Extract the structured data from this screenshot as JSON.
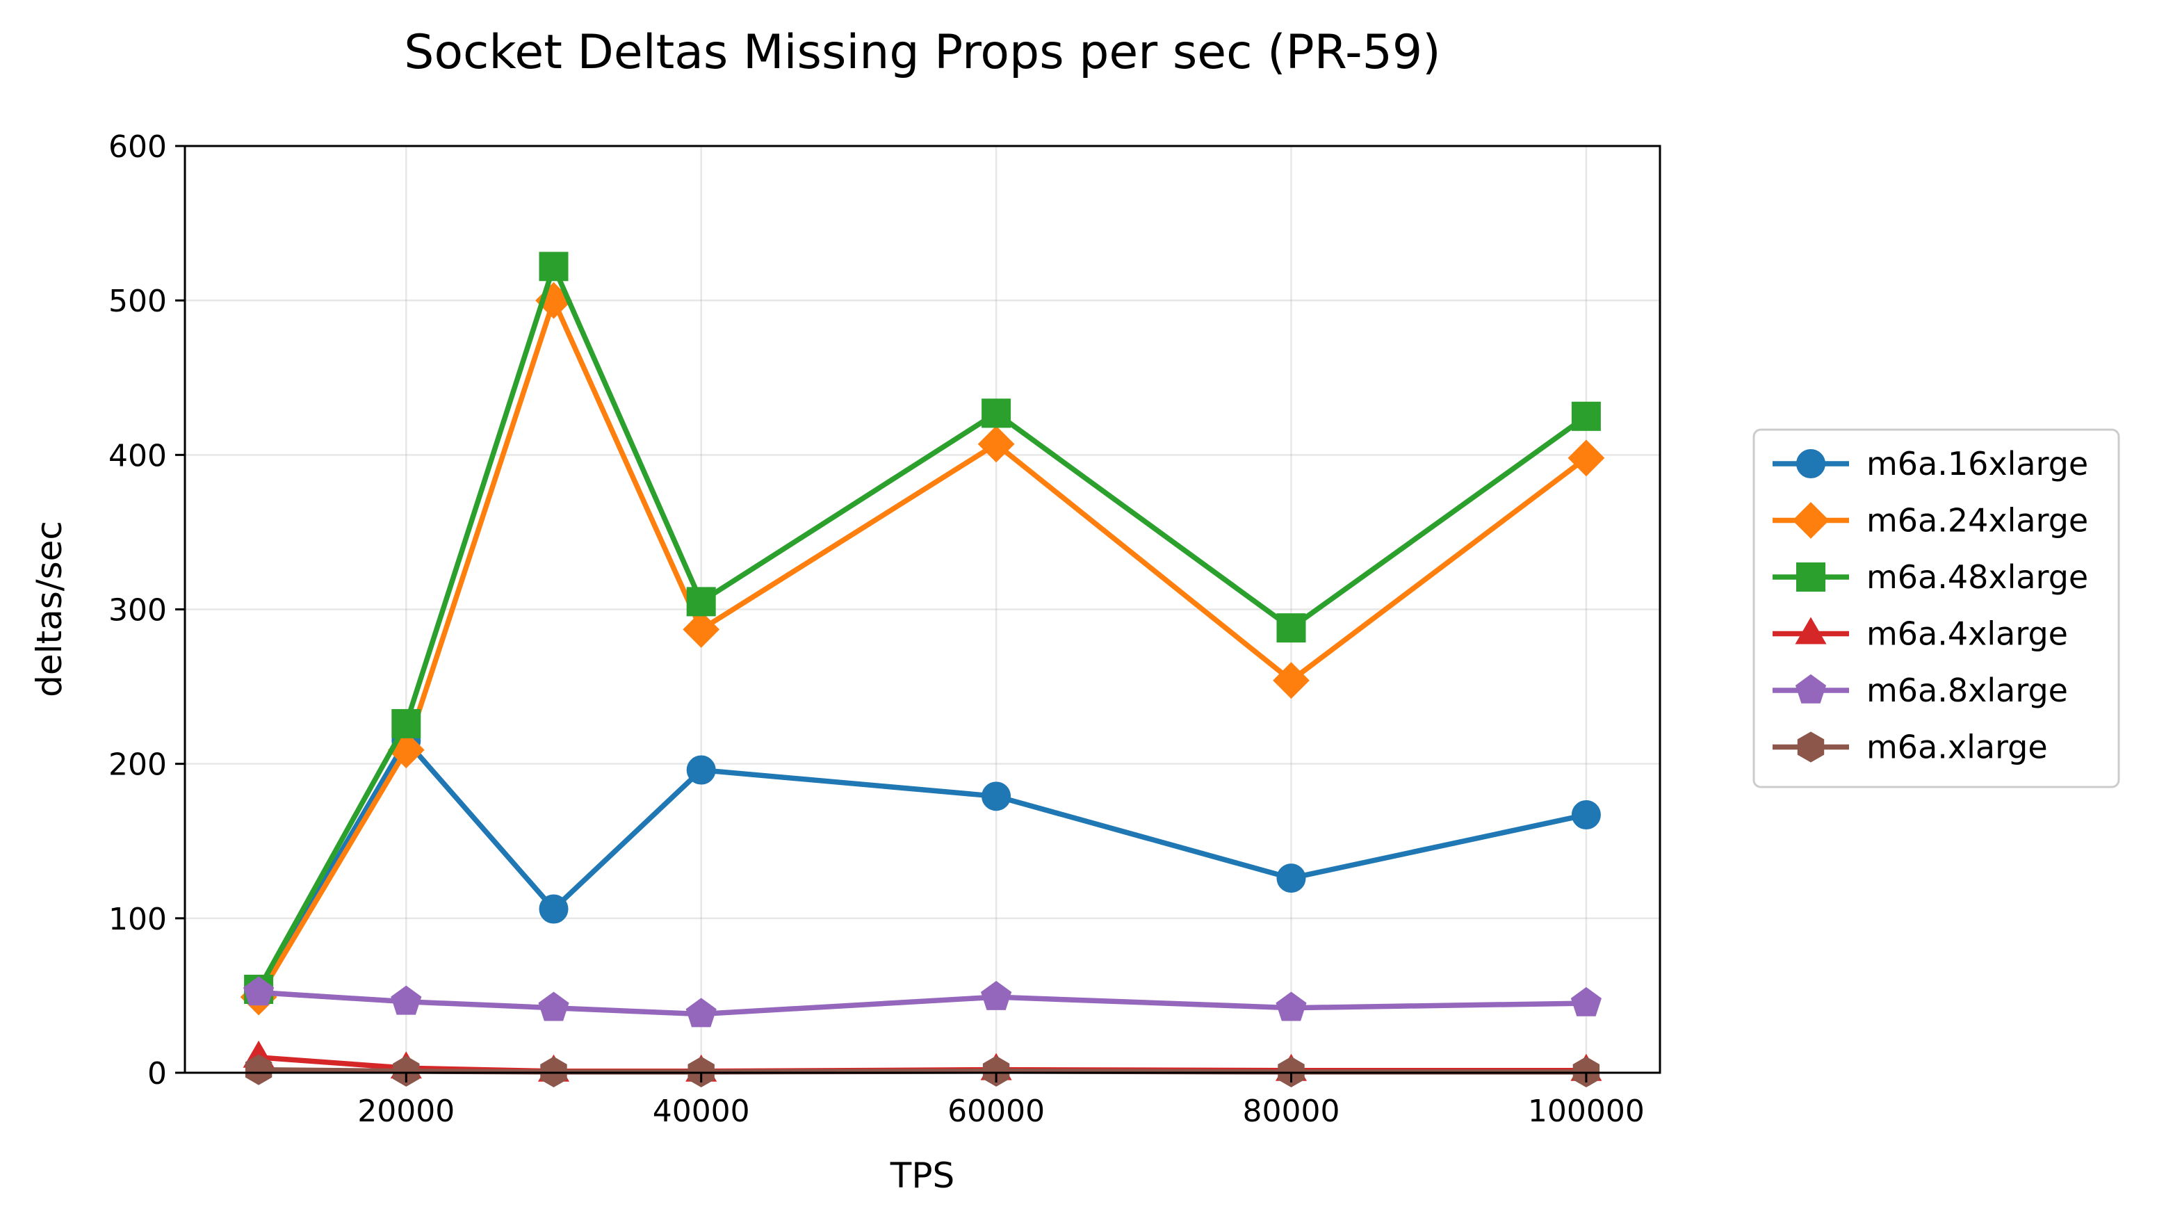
{
  "chart_data": {
    "type": "line",
    "title": "Socket Deltas Missing Props per sec (PR-59)",
    "xlabel": "TPS",
    "ylabel": "deltas/sec",
    "xlim": [
      5000,
      105000
    ],
    "ylim": [
      0,
      600
    ],
    "xticks": [
      20000,
      40000,
      60000,
      80000,
      100000
    ],
    "yticks": [
      0,
      100,
      200,
      300,
      400,
      500,
      600
    ],
    "grid": true,
    "legend_position": "outside right",
    "x": [
      10000,
      20000,
      30000,
      40000,
      60000,
      80000,
      100000
    ],
    "series": [
      {
        "name": "m6a.16xlarge",
        "color": "#1f77b4",
        "marker": "circle",
        "values": [
          52,
          215,
          106,
          196,
          179,
          126,
          167
        ]
      },
      {
        "name": "m6a.24xlarge",
        "color": "#ff7f0e",
        "marker": "diamond",
        "values": [
          49,
          209,
          500,
          287,
          407,
          254,
          398
        ]
      },
      {
        "name": "m6a.48xlarge",
        "color": "#2ca02c",
        "marker": "square",
        "values": [
          54,
          226,
          522,
          305,
          427,
          288,
          425
        ]
      },
      {
        "name": "m6a.4xlarge",
        "color": "#d62728",
        "marker": "triangle",
        "values": [
          10,
          3,
          1,
          1,
          2,
          1.5,
          1.5
        ]
      },
      {
        "name": "m6a.8xlarge",
        "color": "#9467bd",
        "marker": "pentagon",
        "values": [
          52,
          46,
          42,
          38,
          49,
          42,
          45
        ]
      },
      {
        "name": "m6a.xlarge",
        "color": "#8c564b",
        "marker": "hexagon",
        "values": [
          2,
          1,
          0.5,
          0.5,
          1,
          0.5,
          0.5
        ]
      }
    ]
  }
}
